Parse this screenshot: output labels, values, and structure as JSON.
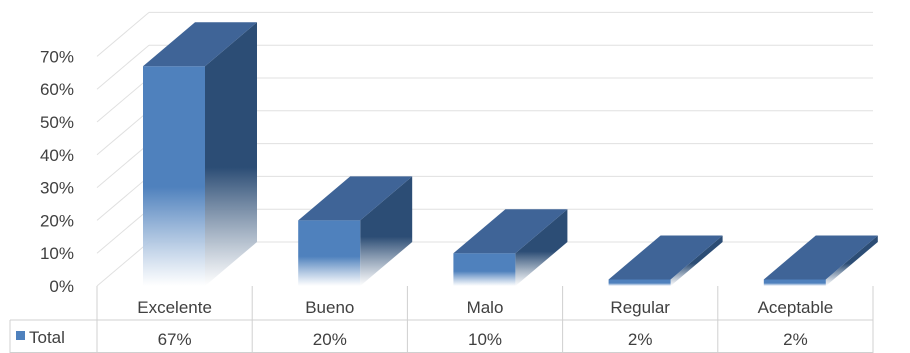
{
  "chart_data": {
    "type": "bar",
    "style": "3d",
    "categories": [
      "Excelente",
      "Bueno",
      "Malo",
      "Regular",
      "Aceptable"
    ],
    "series": [
      {
        "name": "Total",
        "values": [
          67,
          20,
          10,
          2,
          2
        ],
        "labels": [
          "67%",
          "20%",
          "10%",
          "2%",
          "2%"
        ]
      }
    ],
    "ylim": [
      0,
      70
    ],
    "y_ticks": [
      0,
      10,
      20,
      30,
      40,
      50,
      60,
      70
    ],
    "y_tick_format": "percent",
    "grid": true,
    "data_table": true,
    "legend": "data-table",
    "colors": {
      "front": "#4f81bd",
      "side": "#2c4d75",
      "top": "#3f6497",
      "grid": "#e0e0e0",
      "table_border": "#d0d0d0",
      "text": "#404040"
    }
  }
}
